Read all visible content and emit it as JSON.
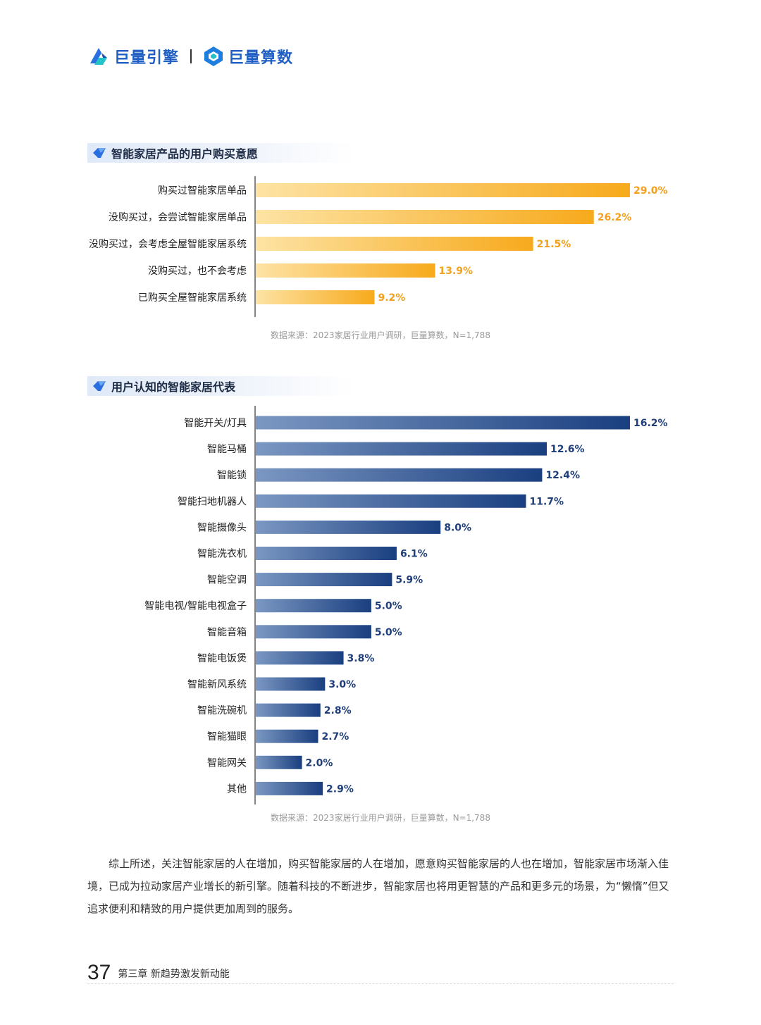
{
  "header": {
    "brand1": "巨量引擎",
    "brand2": "巨量算数"
  },
  "colors": {
    "brand_blue": "#1f5fc4",
    "bar_orange_start": "#fde3a4",
    "bar_orange_end": "#f7aa1c",
    "bar_blue_start": "#7b97c2",
    "bar_blue_end": "#1a3f80",
    "label_orange": "#f2a01d",
    "label_blue": "#1f3f7a"
  },
  "sections": [
    {
      "title": "智能家居产品的用户购买意愿",
      "source": "数据来源：2023家居行业用户调研，巨量算数，N=1,788"
    },
    {
      "title": "用户认知的智能家居代表",
      "source": "数据来源：2023家居行业用户调研，巨量算数，N=1,788"
    }
  ],
  "chart_data": [
    {
      "type": "bar",
      "orientation": "horizontal",
      "categories": [
        "购买过智能家居单品",
        "没购买过，会尝试智能家居单品",
        "没购买过，会考虑全屋智能家居系统",
        "没购买过，也不会考虑",
        "已购买全屋智能家居系统"
      ],
      "values": [
        29.0,
        26.2,
        21.5,
        13.9,
        9.2
      ],
      "labels": [
        "29.0%",
        "26.2%",
        "21.5%",
        "13.9%",
        "9.2%"
      ],
      "xlim": [
        0,
        29.0
      ],
      "title": "智能家居产品的用户购买意愿"
    },
    {
      "type": "bar",
      "orientation": "horizontal",
      "categories": [
        "智能开关/灯具",
        "智能马桶",
        "智能锁",
        "智能扫地机器人",
        "智能摄像头",
        "智能洗衣机",
        "智能空调",
        "智能电视/智能电视盒子",
        "智能音箱",
        "智能电饭煲",
        "智能新风系统",
        "智能洗碗机",
        "智能猫眼",
        "智能网关",
        "其他"
      ],
      "values": [
        16.2,
        12.6,
        12.4,
        11.7,
        8.0,
        6.1,
        5.9,
        5.0,
        5.0,
        3.8,
        3.0,
        2.8,
        2.7,
        2.0,
        2.9
      ],
      "labels": [
        "16.2%",
        "12.6%",
        "12.4%",
        "11.7%",
        "8.0%",
        "6.1%",
        "5.9%",
        "5.0%",
        "5.0%",
        "3.8%",
        "3.0%",
        "2.8%",
        "2.7%",
        "2.0%",
        "2.9%"
      ],
      "xlim": [
        0,
        16.2
      ],
      "title": "用户认知的智能家居代表"
    }
  ],
  "paragraph": "综上所述，关注智能家居的人在增加，购买智能家居的人在增加，愿意购买智能家居的人也在增加，智能家居市场渐入佳境，已成为拉动家居产业增长的新引擎。随着科技的不断进步，智能家居也将用更智慧的产品和更多元的场景，为“懒惰”但又追求便利和精致的用户提供更加周到的服务。",
  "footer": {
    "page_number": "37",
    "chapter": "第三章  新趋势激发新动能"
  }
}
